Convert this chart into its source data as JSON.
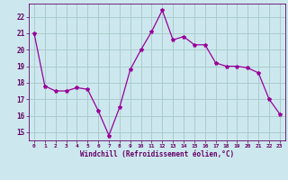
{
  "x": [
    0,
    1,
    2,
    3,
    4,
    5,
    6,
    7,
    8,
    9,
    10,
    11,
    12,
    13,
    14,
    15,
    16,
    17,
    18,
    19,
    20,
    21,
    22,
    23
  ],
  "y": [
    21.0,
    17.8,
    17.5,
    17.5,
    17.7,
    17.6,
    16.3,
    14.8,
    16.5,
    18.8,
    20.0,
    21.1,
    22.4,
    20.6,
    20.8,
    20.3,
    20.3,
    19.2,
    19.0,
    19.0,
    18.9,
    18.6,
    17.0,
    16.1
  ],
  "line_color": "#990099",
  "marker": "*",
  "marker_size": 3,
  "bg_color": "#cce8ee",
  "grid_color": "#aacccc",
  "xlabel": "Windchill (Refroidissement éolien,°C)",
  "xlabel_color": "#660066",
  "tick_color": "#660066",
  "ylabel_ticks": [
    15,
    16,
    17,
    18,
    19,
    20,
    21,
    22
  ],
  "xlim": [
    -0.5,
    23.5
  ],
  "ylim": [
    14.5,
    22.8
  ]
}
